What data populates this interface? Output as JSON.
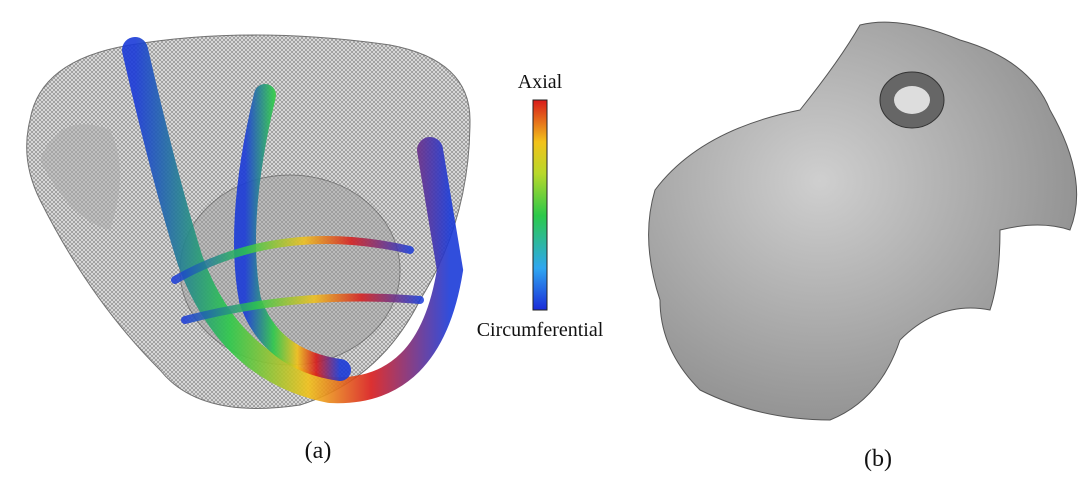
{
  "panels": [
    {
      "label": "(a)"
    },
    {
      "label": "(b)"
    }
  ],
  "colorbar": {
    "top_label": "Axial",
    "bottom_label": "Circumferential"
  }
}
